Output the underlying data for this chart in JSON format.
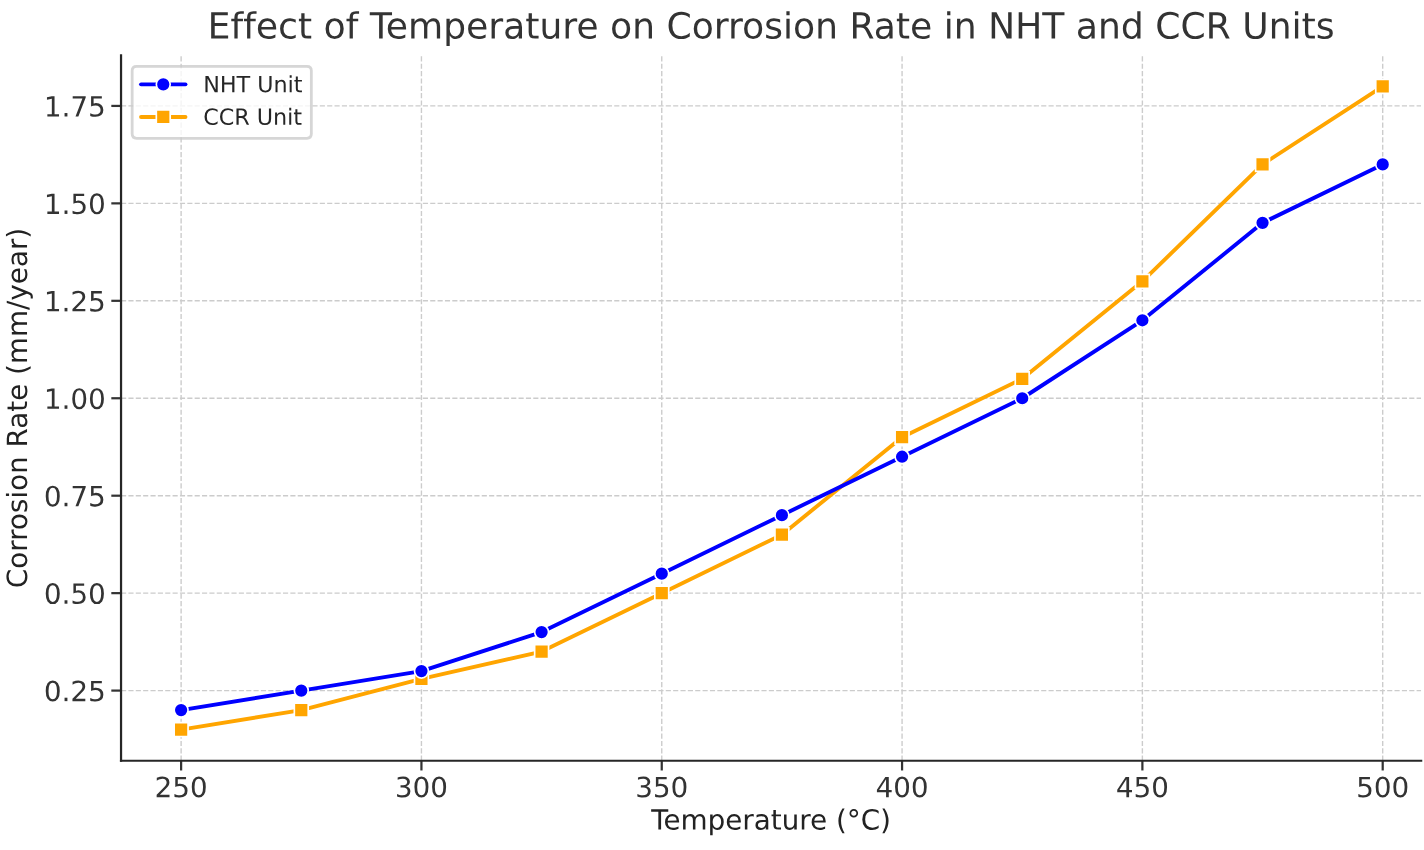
{
  "chart_data": {
    "type": "line",
    "title": "Effect of Temperature on Corrosion Rate in NHT and CCR Units",
    "xlabel": "Temperature (°C)",
    "ylabel": "Corrosion Rate (mm/year)",
    "x": [
      250,
      275,
      300,
      325,
      350,
      375,
      400,
      425,
      450,
      475,
      500
    ],
    "series": [
      {
        "name": "NHT Unit",
        "color": "#0000ff",
        "marker": "circle",
        "values": [
          0.2,
          0.25,
          0.3,
          0.4,
          0.55,
          0.7,
          0.85,
          1.0,
          1.2,
          1.45,
          1.6
        ]
      },
      {
        "name": "CCR Unit",
        "color": "#ffa500",
        "marker": "square",
        "values": [
          0.15,
          0.2,
          0.28,
          0.35,
          0.5,
          0.65,
          0.9,
          1.05,
          1.3,
          1.6,
          1.8
        ]
      }
    ],
    "xlim": [
      237.5,
      508
    ],
    "ylim": [
      0.07,
      1.88
    ],
    "xticks": [
      250,
      300,
      350,
      400,
      450,
      500
    ],
    "yticks": [
      {
        "value": 0.25,
        "label": "0.25"
      },
      {
        "value": 0.5,
        "label": "0.50"
      },
      {
        "value": 0.75,
        "label": "0.75"
      },
      {
        "value": 1.0,
        "label": "1.00"
      },
      {
        "value": 1.25,
        "label": "1.25"
      },
      {
        "value": 1.5,
        "label": "1.50"
      },
      {
        "value": 1.75,
        "label": "1.75"
      }
    ],
    "grid": true,
    "legend": "top left",
    "line_style": "solid"
  }
}
